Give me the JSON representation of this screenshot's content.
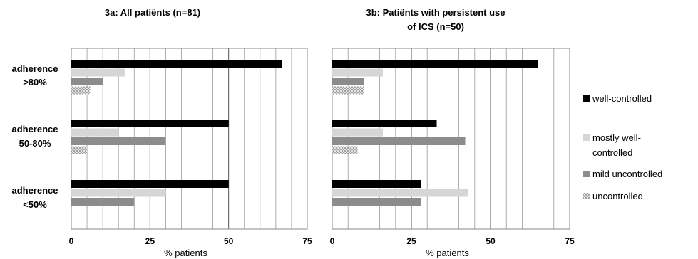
{
  "chart_data": [
    {
      "type": "bar",
      "orientation": "horizontal",
      "title": "3a: All patiënts (n=81)",
      "xlabel": "% patients",
      "xlim": [
        0,
        75
      ],
      "xticks": [
        0,
        25,
        50,
        75
      ],
      "categories": [
        "adherence >80%",
        "adherence 50-80%",
        "adherence <50%"
      ],
      "series": [
        {
          "name": "well-controlled",
          "values": [
            67,
            50,
            50
          ]
        },
        {
          "name": "mostly well-controlled",
          "values": [
            17,
            15,
            30
          ]
        },
        {
          "name": "mild uncontrolled",
          "values": [
            10,
            30,
            20
          ]
        },
        {
          "name": "uncontrolled",
          "values": [
            6,
            5,
            0
          ]
        }
      ],
      "grid": true
    },
    {
      "type": "bar",
      "orientation": "horizontal",
      "title": "3b: Patiënts with persistent use of ICS (n=50)",
      "xlabel": "% patients",
      "xlim": [
        0,
        75
      ],
      "xticks": [
        0,
        25,
        50,
        75
      ],
      "categories": [
        "adherence >80%",
        "adherence 50-80%",
        "adherence <50%"
      ],
      "series": [
        {
          "name": "well-controlled",
          "values": [
            65,
            33,
            28
          ]
        },
        {
          "name": "mostly well-controlled",
          "values": [
            16,
            16,
            43
          ]
        },
        {
          "name": "mild uncontrolled",
          "values": [
            10,
            42,
            28
          ]
        },
        {
          "name": "uncontrolled",
          "values": [
            10,
            8,
            0
          ]
        }
      ],
      "grid": true
    }
  ],
  "panels": [
    {
      "title_lines": [
        "3a: All patiënts (n=81)"
      ]
    },
    {
      "title_lines": [
        "3b: Patiënts with persistent use",
        "of ICS (n=50)"
      ]
    }
  ],
  "category_label_lines": [
    [
      "adherence",
      ">80%"
    ],
    [
      "adherence",
      "50-80%"
    ],
    [
      "adherence",
      "<50%"
    ]
  ],
  "legend": {
    "position": "right",
    "items": [
      {
        "lines": [
          "well-controlled"
        ],
        "color": "#000000",
        "pattern": "solid"
      },
      {
        "lines": [
          "mostly well-",
          "controlled"
        ],
        "color": "#d6d6d6",
        "pattern": "solid"
      },
      {
        "lines": [
          "mild uncontrolled"
        ],
        "color": "#8c8c8c",
        "pattern": "solid"
      },
      {
        "lines": [
          "uncontrolled"
        ],
        "color": "#9a9a9a",
        "pattern": "crosshatch"
      }
    ]
  },
  "colors": {
    "well_controlled": "#000000",
    "mostly_well_controlled": "#d6d6d6",
    "mild_uncontrolled": "#8c8c8c",
    "uncontrolled_pattern": "#9a9a9a",
    "grid": "#9a9a9a",
    "frame": "#888888"
  }
}
